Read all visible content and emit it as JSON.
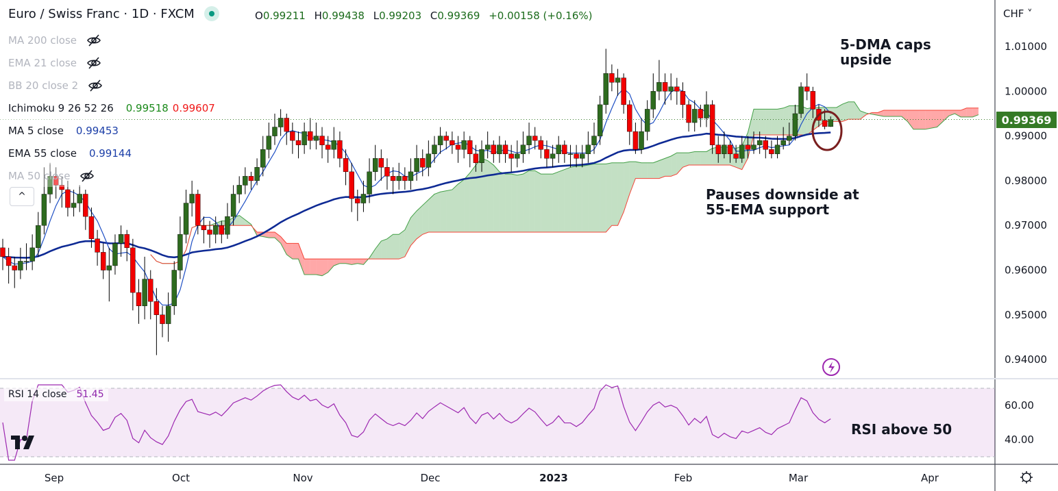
{
  "header": {
    "title": "Euro / Swiss Franc · 1D · FXCM",
    "ohlc": [
      {
        "k": "O",
        "v": "0.99211"
      },
      {
        "k": "H",
        "v": "0.99438"
      },
      {
        "k": "L",
        "v": "0.99203"
      },
      {
        "k": "C",
        "v": "0.99369"
      }
    ],
    "change": "+0.00158 (+0.16%)"
  },
  "legend": [
    {
      "label": "MA 200 close",
      "hidden": true
    },
    {
      "label": "EMA 21 close",
      "hidden": true
    },
    {
      "label": "BB 20 close 2",
      "hidden": true
    },
    {
      "label": "Ichimoku 9 26 52 26",
      "values": [
        "0.99518",
        "0.99607"
      ],
      "colors": [
        "#1b8a1b",
        "#f01818"
      ]
    },
    {
      "label": "MA 5 close",
      "values": [
        "0.99453"
      ],
      "colors": [
        "#1c3fa8"
      ]
    },
    {
      "label": "EMA 55 close",
      "values": [
        "0.99144"
      ],
      "colors": [
        "#1c3fa8"
      ]
    },
    {
      "label": "MA 50 close",
      "hidden": true
    }
  ],
  "collapse_label": "^",
  "currency": "CHF ˅",
  "last_price": "0.99369",
  "annotations": {
    "top": "5-DMA caps\nupside",
    "mid": "Pauses downside at\n55-EMA support",
    "rsi": "RSI above 50"
  },
  "rsi": {
    "label": "RSI 14 close",
    "value": "51.45",
    "color": "#9c27b0",
    "axis": [
      "60.00",
      "40.00"
    ]
  },
  "colors": {
    "up": "#2e6b1f",
    "down": "#f20000",
    "ma5": "#1e4fc4",
    "ema55": "#0e2a94",
    "spanA": "#43a047",
    "spanB": "#f44336"
  },
  "chart_data": {
    "type": "candlestick",
    "symbol": "EURCHF",
    "price_axis": [
      "1.01000",
      "1.00000",
      "0.99000",
      "0.98000",
      "0.97000",
      "0.96000",
      "0.95000",
      "0.94000"
    ],
    "price_axis_values": [
      1.01,
      1.0,
      0.99,
      0.98,
      0.97,
      0.96,
      0.95,
      0.94
    ],
    "time_axis": [
      "Sep",
      "Oct",
      "Nov",
      "Dec",
      "2023",
      "Feb",
      "Mar",
      "Apr"
    ],
    "candles": [
      [
        0.965,
        0.967,
        0.96,
        0.963
      ],
      [
        0.963,
        0.965,
        0.957,
        0.961
      ],
      [
        0.961,
        0.963,
        0.956,
        0.96
      ],
      [
        0.96,
        0.965,
        0.958,
        0.962
      ],
      [
        0.962,
        0.966,
        0.96,
        0.962
      ],
      [
        0.962,
        0.968,
        0.96,
        0.965
      ],
      [
        0.965,
        0.973,
        0.963,
        0.97
      ],
      [
        0.97,
        0.983,
        0.968,
        0.977
      ],
      [
        0.977,
        0.984,
        0.975,
        0.981
      ],
      [
        0.981,
        0.983,
        0.976,
        0.979
      ],
      [
        0.979,
        0.981,
        0.974,
        0.978
      ],
      [
        0.978,
        0.98,
        0.972,
        0.974
      ],
      [
        0.974,
        0.978,
        0.972,
        0.975
      ],
      [
        0.975,
        0.979,
        0.973,
        0.977
      ],
      [
        0.977,
        0.978,
        0.969,
        0.972
      ],
      [
        0.972,
        0.974,
        0.965,
        0.967
      ],
      [
        0.967,
        0.969,
        0.961,
        0.964
      ],
      [
        0.964,
        0.966,
        0.958,
        0.96
      ],
      [
        0.96,
        0.965,
        0.953,
        0.961
      ],
      [
        0.961,
        0.968,
        0.959,
        0.966
      ],
      [
        0.966,
        0.97,
        0.963,
        0.968
      ],
      [
        0.968,
        0.969,
        0.962,
        0.965
      ],
      [
        0.965,
        0.967,
        0.951,
        0.955
      ],
      [
        0.955,
        0.958,
        0.948,
        0.952
      ],
      [
        0.952,
        0.963,
        0.949,
        0.958
      ],
      [
        0.958,
        0.96,
        0.949,
        0.953
      ],
      [
        0.953,
        0.956,
        0.941,
        0.95
      ],
      [
        0.95,
        0.952,
        0.945,
        0.948
      ],
      [
        0.948,
        0.955,
        0.944,
        0.952
      ],
      [
        0.952,
        0.962,
        0.95,
        0.96
      ],
      [
        0.96,
        0.972,
        0.958,
        0.968
      ],
      [
        0.968,
        0.978,
        0.966,
        0.975
      ],
      [
        0.975,
        0.98,
        0.972,
        0.977
      ],
      [
        0.977,
        0.978,
        0.968,
        0.97
      ],
      [
        0.97,
        0.972,
        0.966,
        0.969
      ],
      [
        0.969,
        0.971,
        0.965,
        0.968
      ],
      [
        0.968,
        0.972,
        0.966,
        0.97
      ],
      [
        0.97,
        0.971,
        0.966,
        0.968
      ],
      [
        0.968,
        0.975,
        0.967,
        0.972
      ],
      [
        0.972,
        0.979,
        0.97,
        0.977
      ],
      [
        0.977,
        0.981,
        0.975,
        0.979
      ],
      [
        0.979,
        0.983,
        0.977,
        0.981
      ],
      [
        0.981,
        0.982,
        0.978,
        0.98
      ],
      [
        0.98,
        0.985,
        0.979,
        0.983
      ],
      [
        0.983,
        0.99,
        0.981,
        0.987
      ],
      [
        0.987,
        0.993,
        0.985,
        0.99
      ],
      [
        0.99,
        0.995,
        0.988,
        0.992
      ],
      [
        0.992,
        0.996,
        0.99,
        0.994
      ],
      [
        0.994,
        0.995,
        0.988,
        0.991
      ],
      [
        0.991,
        0.993,
        0.986,
        0.989
      ],
      [
        0.989,
        0.991,
        0.985,
        0.988
      ],
      [
        0.988,
        0.993,
        0.986,
        0.991
      ],
      [
        0.991,
        0.994,
        0.987,
        0.989
      ],
      [
        0.989,
        0.993,
        0.987,
        0.99
      ],
      [
        0.99,
        0.992,
        0.985,
        0.988
      ],
      [
        0.988,
        0.99,
        0.984,
        0.987
      ],
      [
        0.987,
        0.992,
        0.985,
        0.989
      ],
      [
        0.989,
        0.991,
        0.983,
        0.985
      ],
      [
        0.985,
        0.987,
        0.979,
        0.982
      ],
      [
        0.982,
        0.984,
        0.973,
        0.976
      ],
      [
        0.976,
        0.978,
        0.971,
        0.975
      ],
      [
        0.975,
        0.98,
        0.973,
        0.977
      ],
      [
        0.977,
        0.985,
        0.975,
        0.982
      ],
      [
        0.982,
        0.988,
        0.98,
        0.985
      ],
      [
        0.985,
        0.987,
        0.98,
        0.983
      ],
      [
        0.983,
        0.985,
        0.978,
        0.981
      ],
      [
        0.981,
        0.983,
        0.977,
        0.98
      ],
      [
        0.98,
        0.984,
        0.978,
        0.981
      ],
      [
        0.981,
        0.983,
        0.978,
        0.98
      ],
      [
        0.98,
        0.985,
        0.978,
        0.982
      ],
      [
        0.982,
        0.988,
        0.98,
        0.985
      ],
      [
        0.985,
        0.987,
        0.981,
        0.983
      ],
      [
        0.983,
        0.989,
        0.981,
        0.986
      ],
      [
        0.986,
        0.99,
        0.984,
        0.988
      ],
      [
        0.988,
        0.992,
        0.986,
        0.99
      ],
      [
        0.99,
        0.991,
        0.987,
        0.989
      ],
      [
        0.989,
        0.991,
        0.986,
        0.988
      ],
      [
        0.988,
        0.99,
        0.984,
        0.987
      ],
      [
        0.987,
        0.991,
        0.985,
        0.989
      ],
      [
        0.989,
        0.99,
        0.983,
        0.986
      ],
      [
        0.986,
        0.988,
        0.982,
        0.984
      ],
      [
        0.984,
        0.989,
        0.982,
        0.987
      ],
      [
        0.987,
        0.991,
        0.985,
        0.988
      ],
      [
        0.988,
        0.989,
        0.984,
        0.986
      ],
      [
        0.986,
        0.99,
        0.984,
        0.988
      ],
      [
        0.988,
        0.989,
        0.984,
        0.986
      ],
      [
        0.986,
        0.988,
        0.982,
        0.985
      ],
      [
        0.985,
        0.989,
        0.983,
        0.986
      ],
      [
        0.986,
        0.991,
        0.984,
        0.988
      ],
      [
        0.988,
        0.993,
        0.986,
        0.99
      ],
      [
        0.99,
        0.992,
        0.987,
        0.989
      ],
      [
        0.989,
        0.99,
        0.985,
        0.987
      ],
      [
        0.987,
        0.989,
        0.983,
        0.985
      ],
      [
        0.985,
        0.988,
        0.983,
        0.986
      ],
      [
        0.986,
        0.99,
        0.984,
        0.988
      ],
      [
        0.988,
        0.989,
        0.984,
        0.986
      ],
      [
        0.986,
        0.988,
        0.983,
        0.986
      ],
      [
        0.986,
        0.988,
        0.983,
        0.985
      ],
      [
        0.985,
        0.988,
        0.983,
        0.986
      ],
      [
        0.986,
        0.991,
        0.984,
        0.988
      ],
      [
        0.988,
        0.993,
        0.986,
        0.99
      ],
      [
        0.99,
        0.999,
        0.988,
        0.997
      ],
      [
        0.997,
        1.0095,
        0.995,
        1.004
      ],
      [
        1.004,
        1.006,
        1.0,
        1.002
      ],
      [
        1.002,
        1.005,
        0.999,
        1.003
      ],
      [
        1.003,
        1.004,
        0.995,
        0.997
      ],
      [
        0.997,
        0.998,
        0.988,
        0.991
      ],
      [
        0.991,
        0.993,
        0.986,
        0.987
      ],
      [
        0.987,
        0.994,
        0.986,
        0.991
      ],
      [
        0.991,
        0.998,
        0.989,
        0.996
      ],
      [
        0.996,
        1.004,
        0.994,
        1.0
      ],
      [
        1.0,
        1.007,
        0.998,
        1.002
      ],
      [
        1.002,
        1.004,
        0.997,
        1.0
      ],
      [
        1.0,
        1.004,
        0.998,
        1.001
      ],
      [
        1.001,
        1.003,
        0.997,
        1.0
      ],
      [
        1.0,
        1.002,
        0.994,
        0.997
      ],
      [
        0.997,
        0.998,
        0.991,
        0.993
      ],
      [
        0.993,
        0.998,
        0.991,
        0.996
      ],
      [
        0.996,
        0.997,
        0.992,
        0.994
      ],
      [
        0.994,
        1.0,
        0.992,
        0.997
      ],
      [
        0.997,
        0.998,
        0.986,
        0.988
      ],
      [
        0.988,
        0.99,
        0.984,
        0.986
      ],
      [
        0.986,
        0.991,
        0.985,
        0.988
      ],
      [
        0.988,
        0.989,
        0.984,
        0.986
      ],
      [
        0.986,
        0.988,
        0.984,
        0.985
      ],
      [
        0.985,
        0.99,
        0.984,
        0.988
      ],
      [
        0.988,
        0.99,
        0.985,
        0.987
      ],
      [
        0.987,
        0.991,
        0.986,
        0.988
      ],
      [
        0.988,
        0.991,
        0.986,
        0.989
      ],
      [
        0.989,
        0.99,
        0.985,
        0.987
      ],
      [
        0.987,
        0.989,
        0.985,
        0.986
      ],
      [
        0.986,
        0.99,
        0.985,
        0.988
      ],
      [
        0.988,
        0.992,
        0.987,
        0.989
      ],
      [
        0.989,
        0.993,
        0.988,
        0.99
      ],
      [
        0.99,
        0.997,
        0.989,
        0.995
      ],
      [
        0.995,
        1.002,
        0.994,
        1.001
      ],
      [
        1.001,
        1.004,
        0.998,
        1.0
      ],
      [
        1.0,
        1.001,
        0.994,
        0.996
      ],
      [
        0.996,
        0.997,
        0.992,
        0.9935
      ],
      [
        0.9935,
        0.996,
        0.9915,
        0.99211
      ],
      [
        0.99211,
        0.99438,
        0.99203,
        0.99369
      ]
    ],
    "indicators": [
      "MA 5 close",
      "EMA 55 close",
      "Ichimoku 9 26 52 26",
      "RSI 14 close"
    ]
  }
}
